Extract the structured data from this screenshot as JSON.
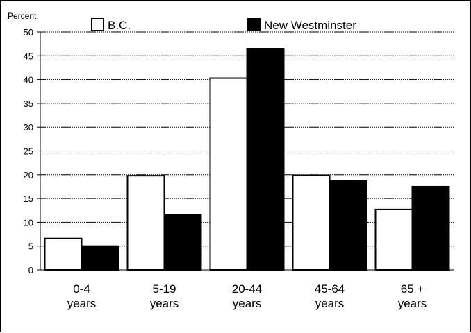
{
  "chart_data": {
    "type": "bar",
    "ylabel": "Percent",
    "ylim": [
      0,
      50
    ],
    "yticks": [
      0,
      5,
      10,
      15,
      20,
      25,
      30,
      35,
      40,
      45,
      50
    ],
    "grid": true,
    "legend_position": "top",
    "categories": [
      [
        "0-4",
        "years"
      ],
      [
        "5-19",
        "years"
      ],
      [
        "20-44",
        "years"
      ],
      [
        "45-64",
        "years"
      ],
      [
        "65 +",
        "years"
      ]
    ],
    "series": [
      {
        "name": "B.C.",
        "values": [
          6.6,
          19.8,
          40.3,
          19.9,
          12.7
        ],
        "fill": "#ffffff"
      },
      {
        "name": "New Westminster",
        "values": [
          5.0,
          11.6,
          46.5,
          18.7,
          17.5
        ],
        "fill": "#000000"
      }
    ]
  }
}
